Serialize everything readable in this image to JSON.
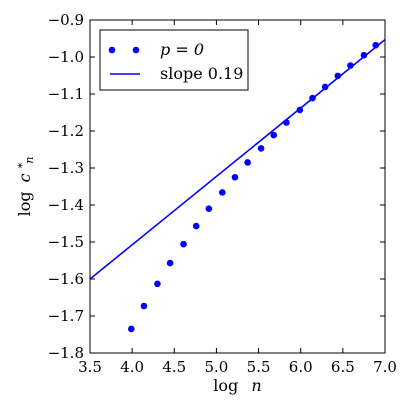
{
  "chart_data": {
    "type": "scatter",
    "xlim": [
      3.5,
      7.0
    ],
    "ylim": [
      -1.8,
      -0.9
    ],
    "x_ticks": [
      3.5,
      4.0,
      4.5,
      5.0,
      5.5,
      6.0,
      6.5,
      7.0
    ],
    "y_ticks": [
      -1.8,
      -1.7,
      -1.6,
      -1.5,
      -1.4,
      -1.3,
      -1.2,
      -1.1,
      -1.0,
      -0.9
    ],
    "x_tick_labels": [
      "3.5",
      "4.0",
      "4.5",
      "5.0",
      "5.5",
      "6.0",
      "6.5",
      "7.0"
    ],
    "y_tick_labels": [
      "−1.8",
      "−1.7",
      "−1.6",
      "−1.5",
      "−1.4",
      "−1.3",
      "−1.2",
      "−1.1",
      "−1.0",
      "−0.9"
    ],
    "xlabel_prefix": "log",
    "xlabel_var": "n",
    "ylabel_prefix": "log",
    "ylabel_var": "c",
    "ylabel_sub": "n",
    "ylabel_sup": "*",
    "legend_position": "upper-left",
    "series": [
      {
        "name": "p = 0",
        "kind": "scatter",
        "color": "#0000ff",
        "x": [
          3.99,
          4.14,
          4.3,
          4.45,
          4.61,
          4.76,
          4.91,
          5.07,
          5.22,
          5.37,
          5.53,
          5.68,
          5.83,
          5.99,
          6.14,
          6.29,
          6.44,
          6.59,
          6.75,
          6.89
        ],
        "y": [
          -1.735,
          -1.673,
          -1.613,
          -1.557,
          -1.506,
          -1.457,
          -1.41,
          -1.366,
          -1.325,
          -1.285,
          -1.247,
          -1.211,
          -1.177,
          -1.143,
          -1.111,
          -1.081,
          -1.051,
          -1.023,
          -0.995,
          -0.968
        ]
      },
      {
        "name": "slope 0.19",
        "kind": "line",
        "color": "#0000ff",
        "x": [
          3.5,
          7.0
        ],
        "y": [
          -1.6,
          -0.953
        ]
      }
    ]
  }
}
